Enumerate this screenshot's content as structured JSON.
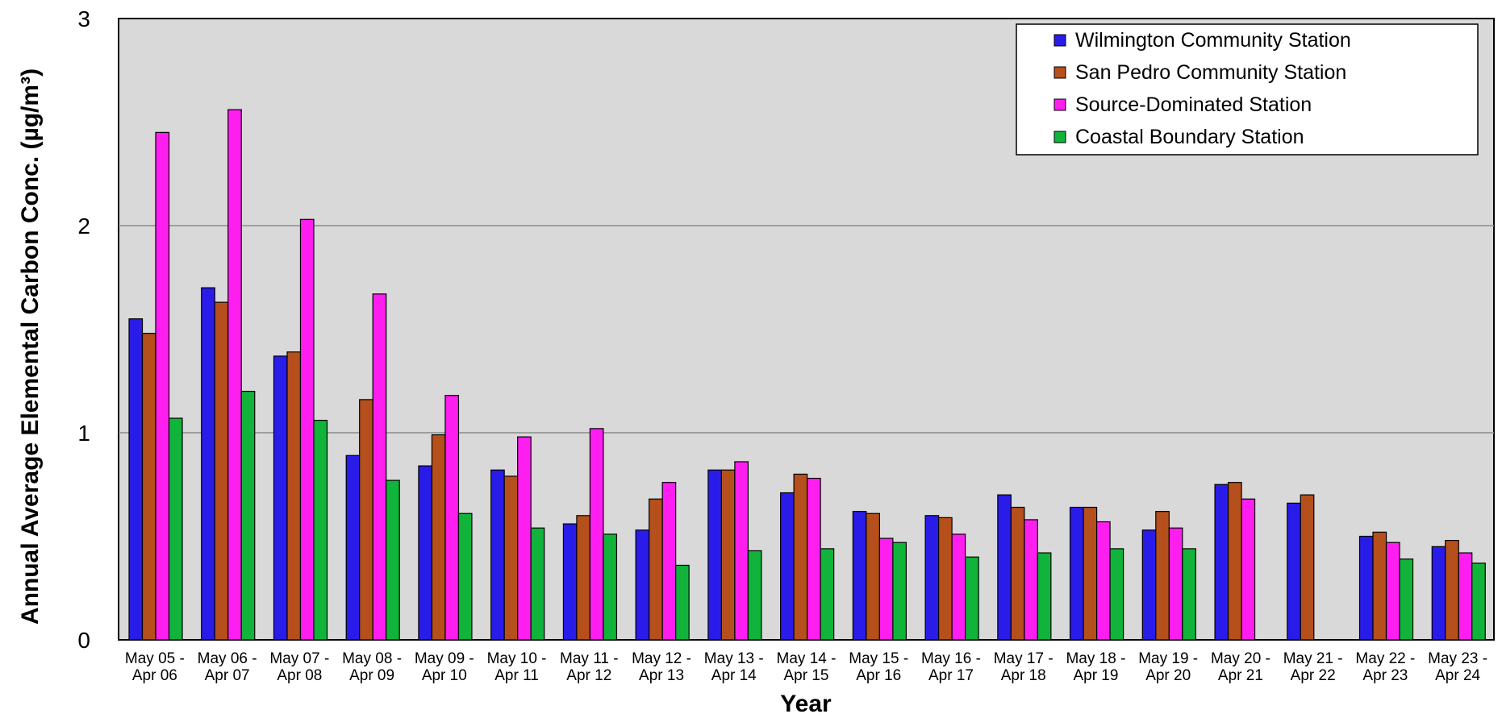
{
  "chart_data": {
    "type": "bar",
    "xlabel": "Year",
    "ylabel": "Annual Average Elemental Carbon Conc. (µg/m³)",
    "ylim": [
      0,
      3
    ],
    "yticks": [
      "0",
      "1",
      "2",
      "3"
    ],
    "grid": true,
    "legend_position": "top-right",
    "categories": [
      [
        "May 05 -",
        "Apr 06"
      ],
      [
        "May 06 -",
        "Apr 07"
      ],
      [
        "May 07 -",
        "Apr 08"
      ],
      [
        "May 08 -",
        "Apr 09"
      ],
      [
        "May 09 -",
        "Apr 10"
      ],
      [
        "May 10 -",
        "Apr 11"
      ],
      [
        "May 11 -",
        "Apr 12"
      ],
      [
        "May 12 -",
        "Apr 13"
      ],
      [
        "May 13 -",
        "Apr 14"
      ],
      [
        "May 14 -",
        "Apr 15"
      ],
      [
        "May 15 -",
        "Apr 16"
      ],
      [
        "May 16 -",
        "Apr 17"
      ],
      [
        "May 17 -",
        "Apr 18"
      ],
      [
        "May 18 -",
        "Apr 19"
      ],
      [
        "May 19 -",
        "Apr 20"
      ],
      [
        "May 20 -",
        "Apr 21"
      ],
      [
        "May 21 -",
        "Apr 22"
      ],
      [
        "May 22 -",
        "Apr 23"
      ],
      [
        "May 23 -",
        "Apr 24"
      ]
    ],
    "series": [
      {
        "name": "Wilmington Community Station",
        "color": "#2a1ce8",
        "values": [
          1.55,
          1.7,
          1.37,
          0.89,
          0.84,
          0.82,
          0.56,
          0.53,
          0.82,
          0.71,
          0.62,
          0.6,
          0.7,
          0.64,
          0.53,
          0.75,
          0.66,
          0.5,
          0.45
        ]
      },
      {
        "name": "San Pedro Community Station",
        "color": "#b5501c",
        "values": [
          1.48,
          1.63,
          1.39,
          1.16,
          0.99,
          0.79,
          0.6,
          0.68,
          0.82,
          0.8,
          0.61,
          0.59,
          0.64,
          0.64,
          0.62,
          0.76,
          0.7,
          0.52,
          0.48
        ]
      },
      {
        "name": "Source-Dominated Station",
        "color": "#ff1ef0",
        "values": [
          2.45,
          2.56,
          2.03,
          1.67,
          1.18,
          0.98,
          1.02,
          0.76,
          0.86,
          0.78,
          0.49,
          0.51,
          0.58,
          0.57,
          0.54,
          0.68,
          null,
          0.47,
          0.42
        ]
      },
      {
        "name": "Coastal Boundary Station",
        "color": "#12b33a",
        "values": [
          1.07,
          1.2,
          1.06,
          0.77,
          0.61,
          0.54,
          0.51,
          0.36,
          0.43,
          0.44,
          0.47,
          0.4,
          0.42,
          0.44,
          0.44,
          null,
          null,
          0.39,
          0.37
        ]
      }
    ]
  }
}
